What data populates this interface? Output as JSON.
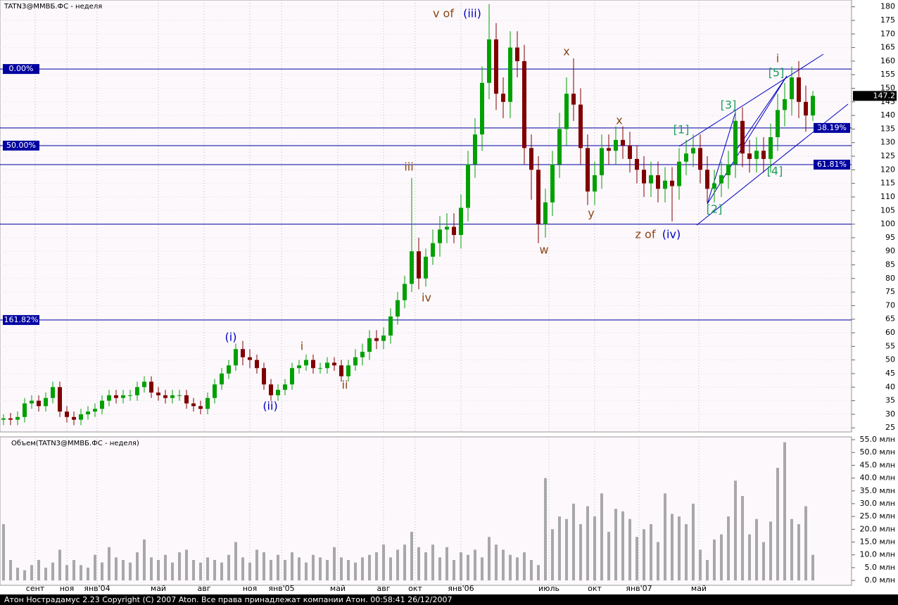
{
  "chart_data": [
    {
      "type": "candlestick",
      "title": "TATN3@ММВБ.ФС - неделя",
      "open": [
        28,
        28.5,
        28,
        29,
        34,
        35,
        33,
        36,
        40,
        31,
        29,
        28,
        30,
        31,
        32,
        35,
        37,
        36,
        37,
        37,
        40,
        42,
        38,
        37,
        36,
        37,
        37,
        34,
        33,
        32,
        36,
        41,
        45,
        48,
        54,
        51,
        50,
        47,
        41,
        37,
        39,
        41,
        47,
        48,
        50,
        47,
        47,
        49,
        48,
        44,
        48,
        51,
        53,
        58,
        57,
        59,
        66,
        72,
        78,
        90,
        80,
        88,
        93,
        98,
        99,
        96,
        106,
        122,
        133,
        152,
        168,
        148,
        145,
        165,
        160,
        128,
        120,
        100,
        108,
        122,
        135,
        148,
        144,
        128,
        112,
        118,
        128,
        127,
        131,
        129,
        124,
        120,
        115,
        118,
        113,
        116,
        114,
        123,
        126,
        128,
        120,
        113,
        115,
        118,
        122,
        138,
        126,
        124,
        127,
        124,
        132,
        142,
        146,
        154,
        145,
        140
      ],
      "high": [
        30,
        30.5,
        31,
        36,
        37,
        37,
        38,
        42,
        42,
        33,
        31,
        32,
        33,
        34,
        37,
        39,
        39,
        39,
        39,
        42,
        44,
        44,
        40,
        39,
        39,
        39,
        39,
        36,
        35,
        38,
        43,
        47,
        50,
        56,
        57,
        54,
        52,
        49,
        43,
        41,
        43,
        49,
        50,
        52,
        52,
        49,
        51,
        51,
        50,
        50,
        54,
        56,
        61,
        61,
        62,
        69,
        75,
        81,
        117,
        95,
        91,
        98,
        103,
        104,
        104,
        111,
        127,
        139,
        158,
        181,
        174,
        154,
        171,
        171,
        166,
        133,
        125,
        113,
        127,
        141,
        154,
        161,
        150,
        133,
        123,
        133,
        133,
        136,
        136,
        134,
        129,
        125,
        123,
        123,
        121,
        121,
        128,
        131,
        133,
        133,
        125,
        120,
        123,
        127,
        142,
        143,
        131,
        132,
        132,
        137,
        148,
        152,
        158,
        160,
        151,
        149
      ],
      "low": [
        26,
        26,
        26,
        27,
        32,
        31,
        31,
        34,
        29,
        27,
        26,
        26,
        28,
        29,
        30,
        33,
        34,
        34,
        35,
        35,
        38,
        36,
        35,
        34,
        34,
        35,
        32,
        31,
        30,
        30,
        34,
        39,
        43,
        46,
        48,
        47,
        45,
        39,
        35,
        35,
        37,
        39,
        45,
        46,
        45,
        45,
        45,
        46,
        42,
        42,
        46,
        48,
        50,
        54,
        54,
        56,
        63,
        69,
        75,
        76,
        77,
        85,
        88,
        93,
        93,
        91,
        101,
        117,
        127,
        146,
        142,
        139,
        139,
        154,
        122,
        109,
        93,
        95,
        103,
        117,
        129,
        138,
        122,
        107,
        107,
        113,
        122,
        122,
        124,
        119,
        115,
        110,
        110,
        108,
        108,
        101,
        109,
        118,
        121,
        115,
        108,
        108,
        110,
        113,
        117,
        121,
        119,
        119,
        119,
        119,
        127,
        136,
        140,
        139,
        134,
        138
      ],
      "close": [
        28.5,
        28,
        29,
        34,
        35,
        33,
        36,
        40,
        31,
        29,
        28,
        30,
        31,
        32,
        35,
        37,
        36,
        37,
        37,
        40,
        42,
        38,
        37,
        36,
        37,
        37,
        34,
        33,
        32,
        36,
        41,
        45,
        48,
        54,
        51,
        50,
        47,
        41,
        37,
        39,
        41,
        47,
        48,
        50,
        47,
        47,
        49,
        48,
        44,
        48,
        51,
        53,
        58,
        57,
        59,
        66,
        72,
        78,
        90,
        80,
        88,
        93,
        98,
        99,
        96,
        106,
        122,
        133,
        152,
        168,
        148,
        145,
        165,
        160,
        128,
        120,
        100,
        108,
        122,
        135,
        148,
        144,
        128,
        112,
        118,
        128,
        127,
        131,
        129,
        124,
        120,
        115,
        118,
        113,
        116,
        114,
        123,
        126,
        128,
        120,
        113,
        115,
        118,
        122,
        138,
        126,
        124,
        127,
        124,
        132,
        142,
        146,
        154,
        145,
        140,
        147.2
      ],
      "up_color": "#00a000",
      "down_color": "#800000",
      "xlim": [
        -0.5,
        120.5
      ],
      "xticks": [
        {
          "value": 4.5,
          "label": "сент"
        },
        {
          "value": 9,
          "label": "ноя"
        },
        {
          "value": 13.3,
          "label": "янв'04"
        },
        {
          "value": 22,
          "label": "май"
        },
        {
          "value": 28.5,
          "label": "авг"
        },
        {
          "value": 35,
          "label": "ноя"
        },
        {
          "value": 39.5,
          "label": "янв'05"
        },
        {
          "value": 47.5,
          "label": "май"
        },
        {
          "value": 54,
          "label": "авг"
        },
        {
          "value": 58.5,
          "label": "окт"
        },
        {
          "value": 65,
          "label": "янв'06"
        },
        {
          "value": 77.5,
          "label": "июль"
        },
        {
          "value": 84,
          "label": "окт"
        },
        {
          "value": 90.3,
          "label": "янв'07"
        },
        {
          "value": 98.8,
          "label": "май"
        }
      ],
      "ylim": [
        23.5,
        182.5
      ],
      "yticks": [
        25,
        30,
        35,
        40,
        45,
        50,
        55,
        60,
        65,
        70,
        75,
        80,
        85,
        90,
        95,
        100,
        105,
        110,
        115,
        120,
        125,
        130,
        135,
        140,
        145,
        150,
        155,
        160,
        165,
        170,
        175,
        180
      ],
      "grid": true,
      "levels": [
        {
          "value": 157.1,
          "label": "0.00%",
          "side": "left"
        },
        {
          "value": 135.4,
          "label": "38.19%",
          "side": "right"
        },
        {
          "value": 128.9,
          "label": "50.00%",
          "side": "left"
        },
        {
          "value": 121.9,
          "label": "61.81%",
          "side": "right"
        },
        {
          "value": 100
        },
        {
          "value": 64.7,
          "label": "161.82%",
          "side": "left"
        }
      ],
      "level_color": "#0000a0",
      "annotations": [
        {
          "text": "v of",
          "color": "#8b4513"
        },
        {
          "text": "(iii)",
          "color": "#0000c0"
        },
        {
          "text": "x",
          "color": "#8b4513"
        },
        {
          "text": "x",
          "color": "#8b4513"
        },
        {
          "text": "i",
          "color": "#8b4513"
        },
        {
          "text": "[5]",
          "color": "#20a060"
        },
        {
          "text": "[3]",
          "color": "#20a060"
        },
        {
          "text": "[1]",
          "color": "#20a060"
        },
        {
          "text": "[4]",
          "color": "#20a060"
        },
        {
          "text": "[2]",
          "color": "#20a060"
        },
        {
          "text": "iii",
          "color": "#8b4513"
        },
        {
          "text": "y",
          "color": "#8b4513"
        },
        {
          "text": "z of",
          "color": "#8b4513"
        },
        {
          "text": "(iv)",
          "color": "#0000c0"
        },
        {
          "text": "w",
          "color": "#8b4513"
        },
        {
          "text": "iv",
          "color": "#8b4513"
        },
        {
          "text": "(i)",
          "color": "#0000c0"
        },
        {
          "text": "i",
          "color": "#8b4513"
        },
        {
          "text": "ii",
          "color": "#8b4513"
        },
        {
          "text": "(ii)",
          "color": "#0000c0"
        }
      ]
    },
    {
      "type": "bar",
      "title": "Объем(TATN3@ММВБ.ФС - неделя)",
      "color": "#a8a8a8",
      "values": [
        22,
        8,
        5,
        4,
        6,
        8,
        5,
        7,
        12,
        6,
        8,
        6,
        5,
        10,
        7,
        13,
        9,
        8,
        7,
        11,
        16,
        9,
        8,
        10,
        7,
        11,
        12,
        8,
        7,
        9,
        8,
        7,
        10,
        15,
        9,
        7,
        12,
        11,
        8,
        10,
        8,
        11,
        9,
        7,
        10,
        9,
        8,
        13,
        9,
        8,
        7,
        9,
        10,
        11,
        14,
        9,
        12,
        14,
        19,
        13,
        11,
        14,
        9,
        13,
        8,
        11,
        10,
        12,
        9,
        17,
        14,
        12,
        10,
        9,
        11,
        8,
        6,
        40,
        20,
        25,
        24,
        30,
        22,
        29,
        25,
        34,
        19,
        28,
        27,
        24,
        17,
        20,
        22,
        15,
        34,
        26,
        25,
        22,
        30,
        12,
        8,
        16,
        18,
        25,
        39,
        33,
        18,
        24,
        15,
        23,
        44,
        54,
        24,
        22,
        29,
        10
      ],
      "ylim": [
        -1.9,
        56.1
      ],
      "yticks": [
        {
          "value": 0,
          "label": "0.0 млн"
        },
        {
          "value": 5,
          "label": "5.0 млн"
        },
        {
          "value": 10,
          "label": "10.0 млн"
        },
        {
          "value": 15,
          "label": "15.0 млн"
        },
        {
          "value": 20,
          "label": "20.0 млн"
        },
        {
          "value": 25,
          "label": "25.0 млн"
        },
        {
          "value": 30,
          "label": "30.0 млн"
        },
        {
          "value": 35,
          "label": "35.0 млн"
        },
        {
          "value": 40,
          "label": "40.0 млн"
        },
        {
          "value": 45,
          "label": "45.0 млн"
        },
        {
          "value": 50,
          "label": "50.0 млн"
        },
        {
          "value": 55,
          "label": "55.0 млн"
        }
      ]
    }
  ],
  "footer": "Атон Нострадамус 2.23 Copyright (C) 2007 Aton. Все права принадлежат компании Атон. 00:58:41 26/12/2007"
}
